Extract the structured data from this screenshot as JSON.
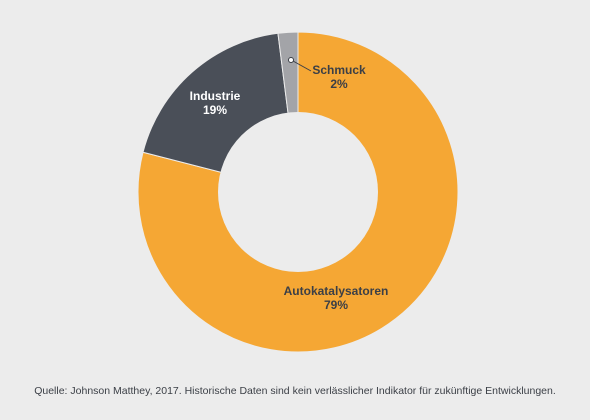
{
  "chart_data": {
    "type": "pie",
    "donut": true,
    "title": "",
    "slices": [
      {
        "name": "Autokatalysatoren",
        "value": 79,
        "value_label": "79%",
        "color": "#f5a734",
        "label_color": "#3b3f46"
      },
      {
        "name": "Industrie",
        "value": 19,
        "value_label": "19%",
        "color": "#4a4f58",
        "label_color": "#ffffff"
      },
      {
        "name": "Schmuck",
        "value": 2,
        "value_label": "2%",
        "color": "#a3a4a8",
        "label_color": "#3b3f46"
      }
    ],
    "start_angle": "top",
    "direction": "clockwise"
  },
  "colors": {
    "background": "#ececec",
    "hole": "#ececec",
    "text": "#3b3f46"
  },
  "source": "Quelle: Johnson Matthey, 2017. Historische Daten sind kein verlässlicher Indikator für zukünftige Entwicklungen."
}
